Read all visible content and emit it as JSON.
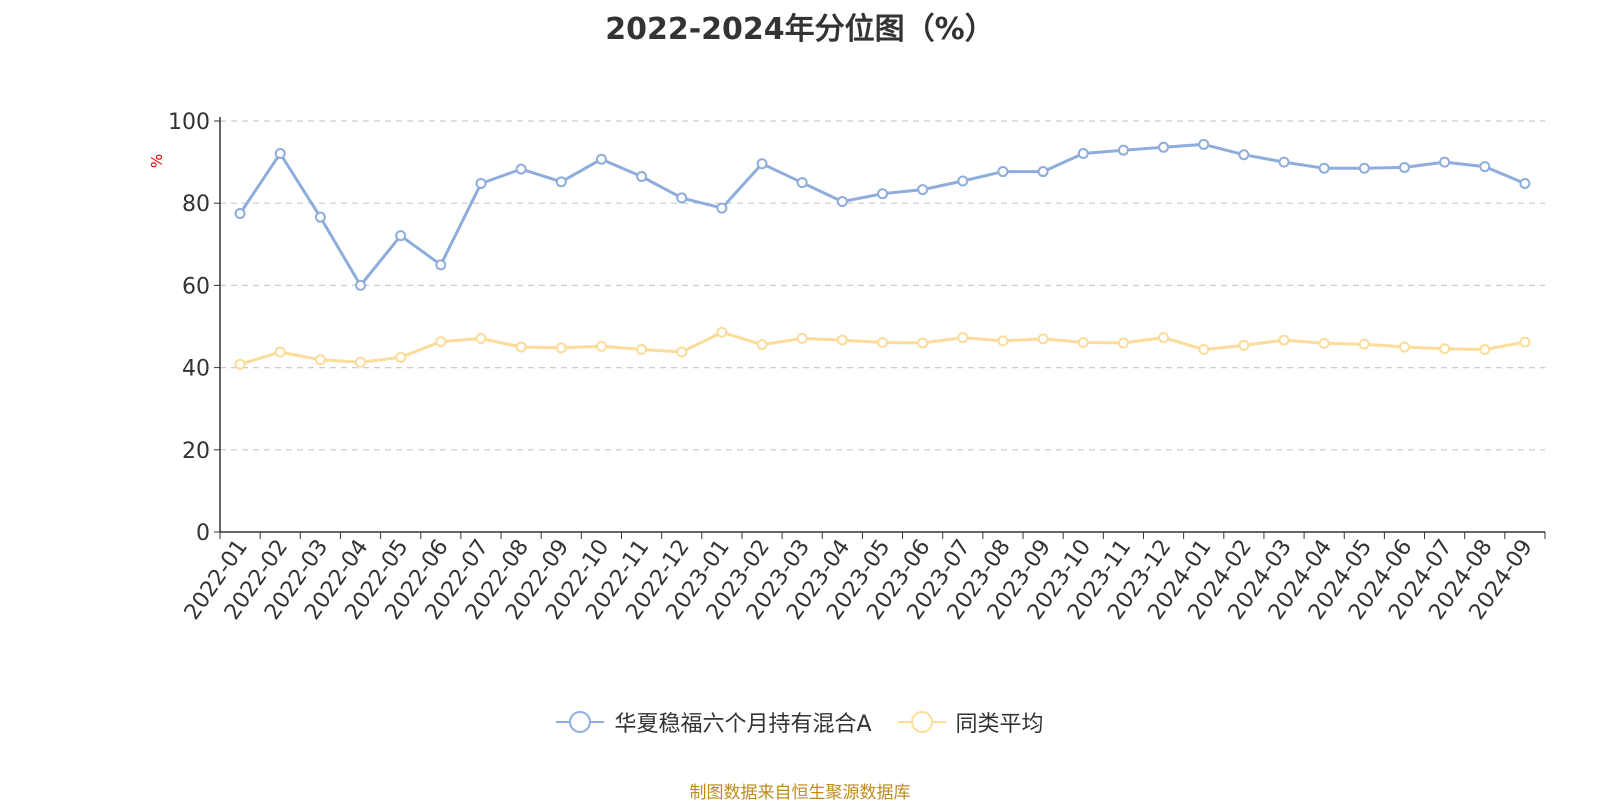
{
  "title": "2022-2024年分位图（%）",
  "source_note": "制图数据来自恒生聚源数据库",
  "colors": {
    "series_1": "#8eaddc",
    "series_2": "#fcdc9a",
    "grid": "#cccccc",
    "axis": "#333333",
    "ylabel": "#e60000",
    "source": "#c08a1e"
  },
  "chart_data": {
    "type": "line",
    "title": "2022-2024年分位图（%）",
    "xlabel": "",
    "ylabel": "%",
    "ylim": [
      0,
      100
    ],
    "yticks": [
      0,
      20,
      40,
      60,
      80,
      100
    ],
    "grid": true,
    "legend_position": "bottom",
    "categories": [
      "2022-01",
      "2022-02",
      "2022-03",
      "2022-04",
      "2022-05",
      "2022-06",
      "2022-07",
      "2022-08",
      "2022-09",
      "2022-10",
      "2022-11",
      "2022-12",
      "2023-01",
      "2023-02",
      "2023-03",
      "2023-04",
      "2023-05",
      "2023-06",
      "2023-07",
      "2023-08",
      "2023-09",
      "2023-10",
      "2023-11",
      "2023-12",
      "2024-01",
      "2024-02",
      "2024-03",
      "2024-04",
      "2024-05",
      "2024-06",
      "2024-07",
      "2024-08",
      "2024-09"
    ],
    "series": [
      {
        "name": "华夏稳福六个月持有混合A",
        "color": "#8eaddc",
        "values": [
          77.5,
          92.1,
          76.6,
          60.0,
          72.1,
          65.0,
          84.8,
          88.3,
          85.2,
          90.7,
          86.5,
          81.3,
          78.8,
          89.6,
          85.0,
          80.4,
          82.3,
          83.3,
          85.4,
          87.7,
          87.7,
          92.1,
          92.9,
          93.6,
          94.3,
          91.8,
          90.0,
          88.5,
          88.5,
          88.7,
          90.0,
          88.9,
          84.8
        ]
      },
      {
        "name": "同类平均",
        "color": "#fcdc9a",
        "values": [
          40.8,
          43.8,
          41.9,
          41.3,
          42.5,
          46.3,
          47.1,
          45.0,
          44.8,
          45.2,
          44.4,
          43.8,
          48.6,
          45.6,
          47.1,
          46.7,
          46.1,
          46.0,
          47.3,
          46.5,
          47.0,
          46.1,
          46.0,
          47.3,
          44.4,
          45.4,
          46.7,
          45.9,
          45.7,
          45.0,
          44.6,
          44.4,
          46.2
        ]
      }
    ]
  }
}
